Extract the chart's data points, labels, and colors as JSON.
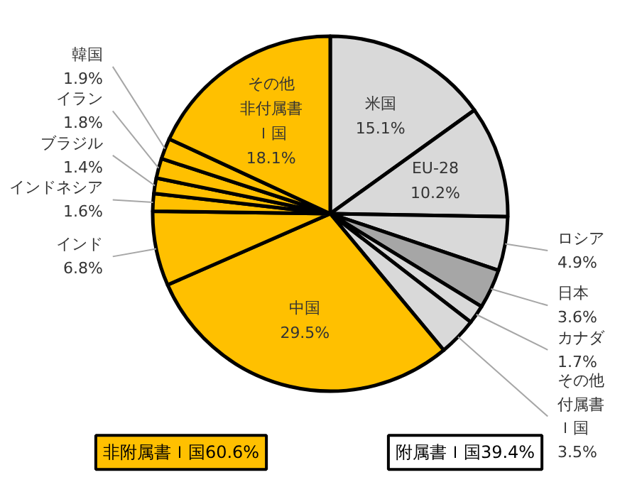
{
  "chart_data": {
    "type": "pie",
    "categories": [
      "米国",
      "EU-28",
      "ロシア",
      "日本",
      "カナダ",
      "その他付属書Ｉ国",
      "中国",
      "インド",
      "インドネシア",
      "ブラジル",
      "イラン",
      "韓国",
      "その他非付属書Ｉ国"
    ],
    "values": [
      15.1,
      10.2,
      4.9,
      3.6,
      1.7,
      3.5,
      29.5,
      6.8,
      1.6,
      1.4,
      1.8,
      1.9,
      18.1
    ],
    "colors": [
      "#d9d9d9",
      "#d9d9d9",
      "#d9d9d9",
      "#a6a6a6",
      "#d9d9d9",
      "#d9d9d9",
      "#ffc000",
      "#ffc000",
      "#ffc000",
      "#ffc000",
      "#ffc000",
      "#ffc000",
      "#ffc000"
    ],
    "value_labels": [
      "15.1%",
      "10.2%",
      "4.9%",
      "3.6%",
      "1.7%",
      "3.5%",
      "29.5%",
      "6.8%",
      "1.6%",
      "1.4%",
      "1.8%",
      "1.9%",
      "18.1%"
    ],
    "annotations": [
      "非附属書Ｉ国60.6%",
      "附属書Ｉ国39.4%"
    ]
  }
}
